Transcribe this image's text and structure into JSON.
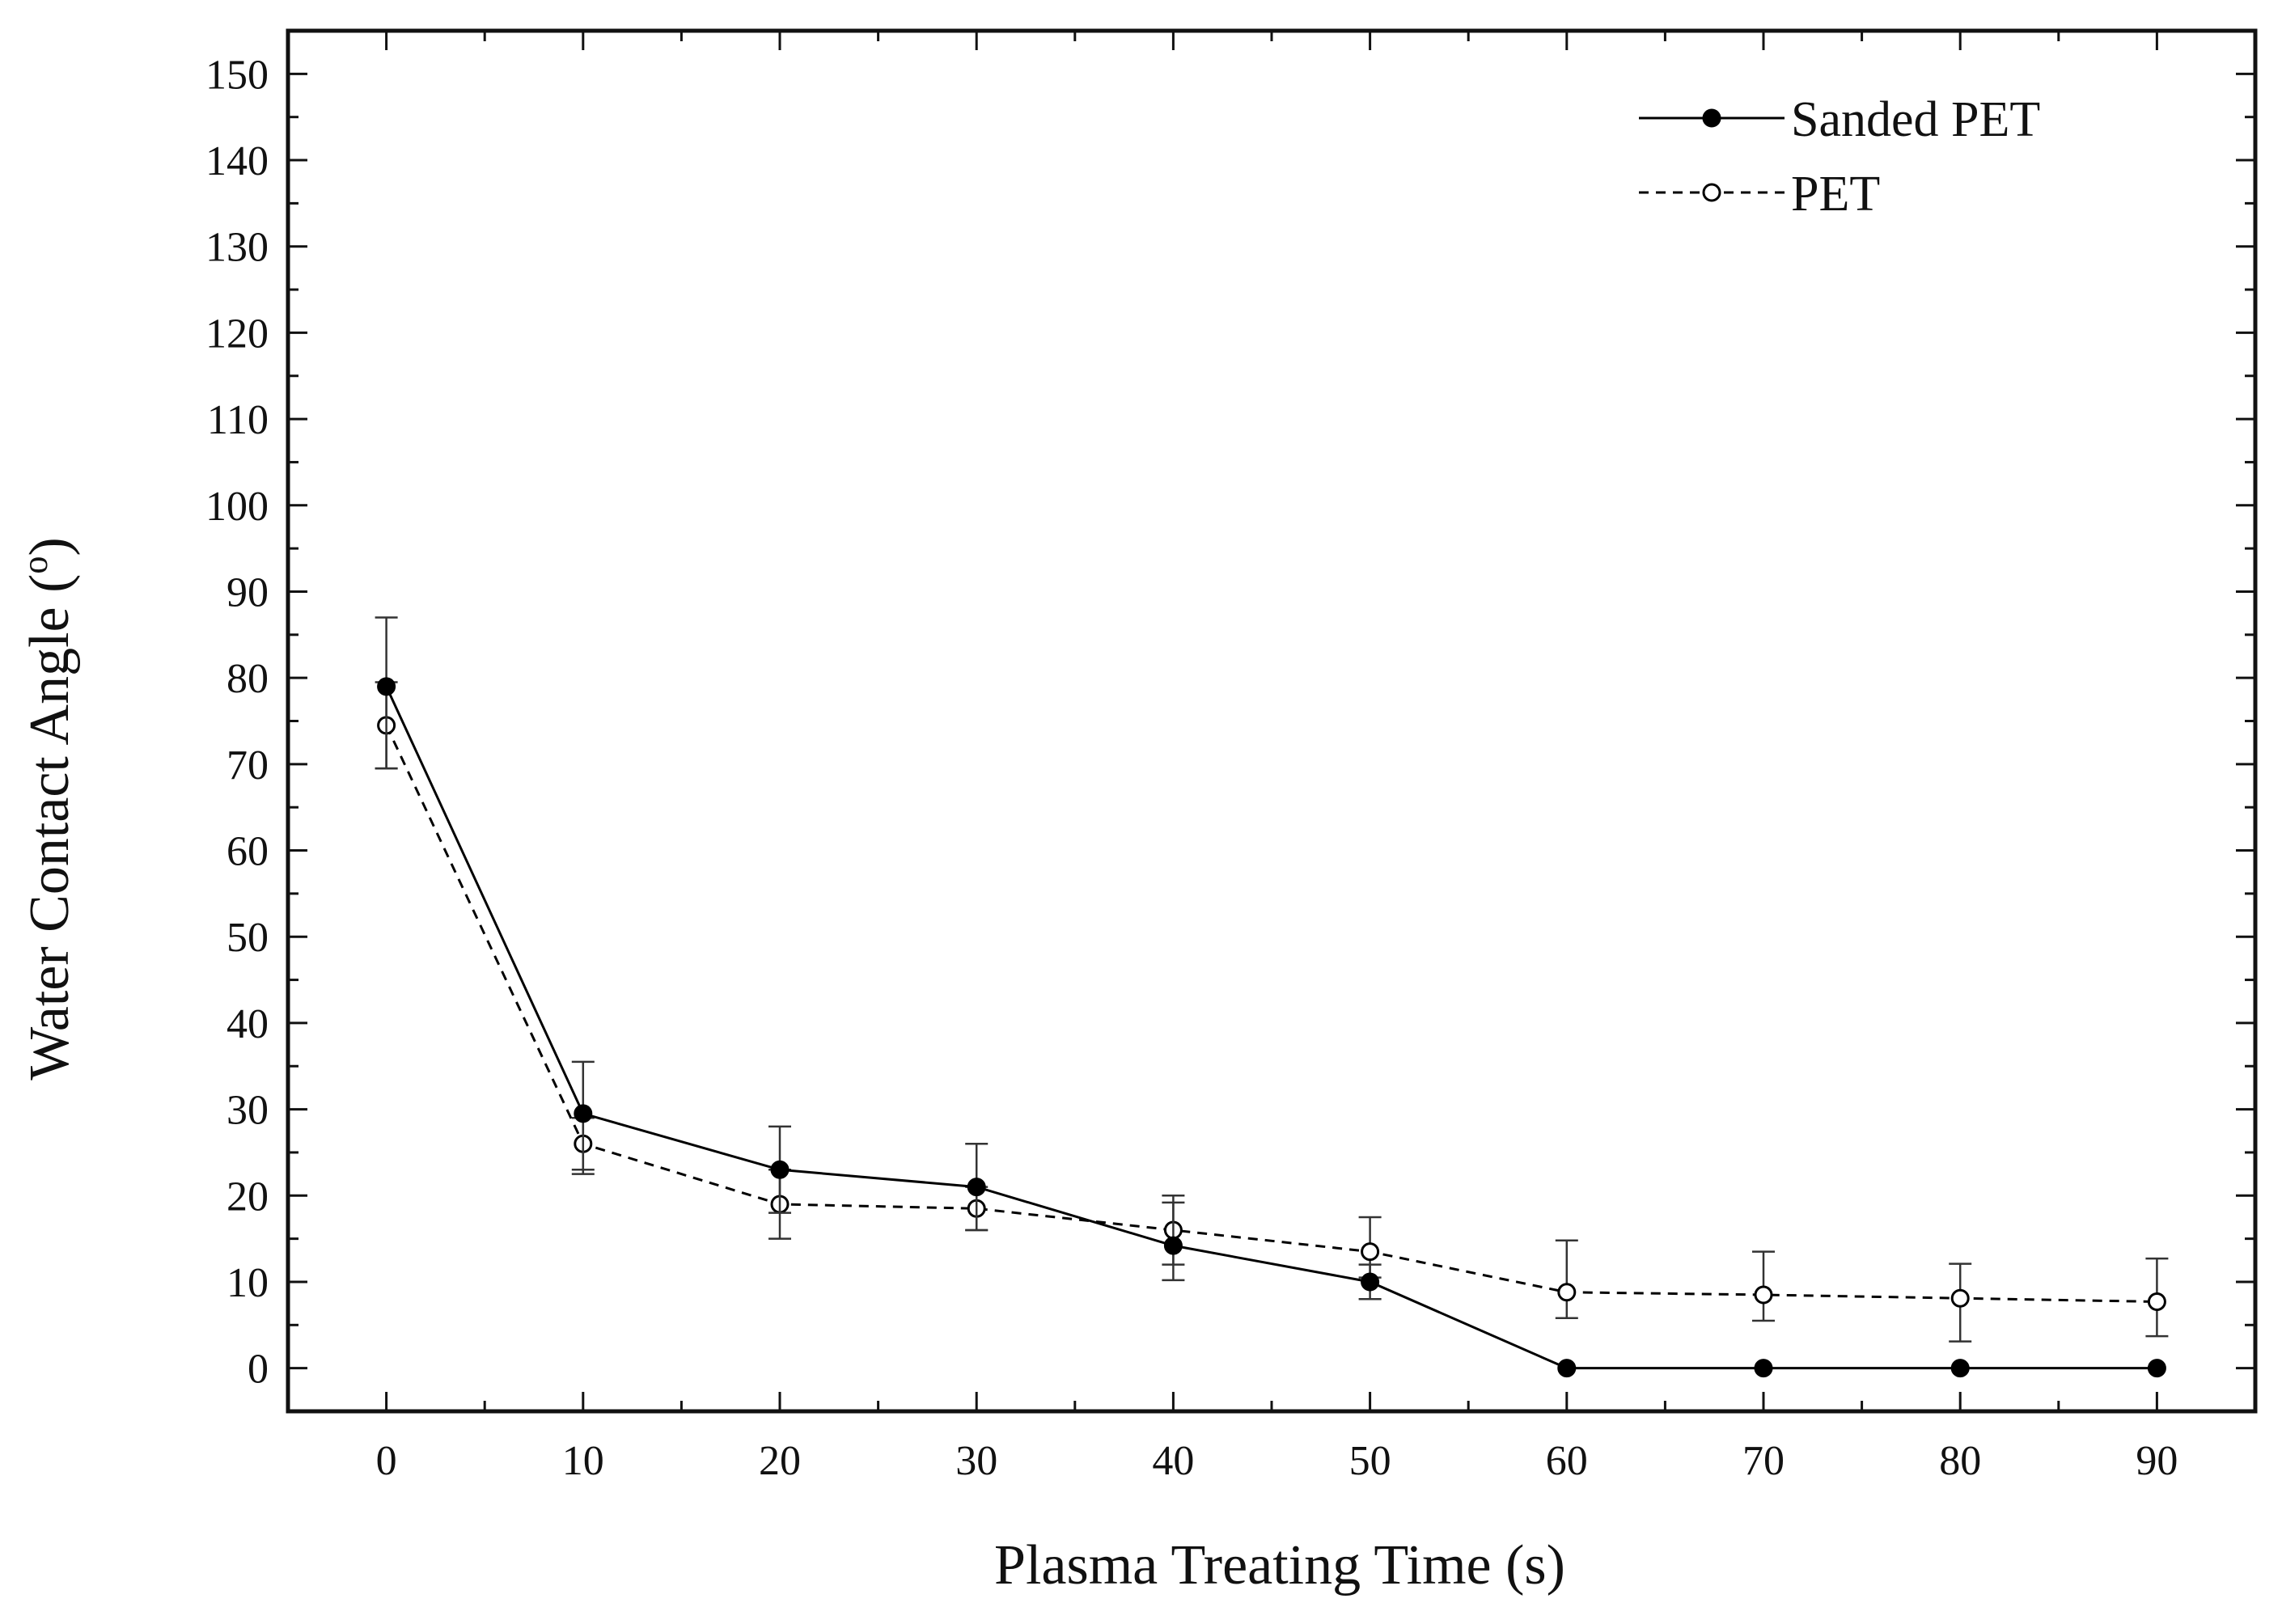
{
  "chart_data": {
    "type": "line",
    "title": "",
    "xlabel": "Plasma Treating Time (s)",
    "ylabel": "Water Contact Angle (°)",
    "ylabel_main": "Water Contact Angle (",
    "ylabel_sup": "o",
    "ylabel_close": ")",
    "xlim": [
      -5,
      95
    ],
    "ylim": [
      -5,
      155
    ],
    "x_ticks": [
      0,
      10,
      20,
      30,
      40,
      50,
      60,
      70,
      80,
      90
    ],
    "x_tick_labels": [
      "0",
      "10",
      "20",
      "30",
      "40",
      "50",
      "60",
      "70",
      "80",
      "90"
    ],
    "y_ticks": [
      0,
      10,
      20,
      30,
      40,
      50,
      60,
      70,
      80,
      90,
      100,
      110,
      120,
      130,
      140,
      150
    ],
    "y_tick_labels": [
      "0",
      "10",
      "20",
      "30",
      "40",
      "50",
      "60",
      "70",
      "80",
      "90",
      "100",
      "110",
      "120",
      "130",
      "140",
      "150"
    ],
    "grid": false,
    "legend_position": "top-right",
    "series": [
      {
        "name": "Sanded PET",
        "marker": "filled-circle",
        "line_style": "solid",
        "x": [
          0,
          10,
          20,
          30,
          40,
          50,
          60,
          70,
          80,
          90
        ],
        "values": [
          79,
          29.5,
          23,
          21,
          14.2,
          10,
          0,
          0,
          0,
          0
        ],
        "err_low": [
          9.5,
          7,
          5,
          5,
          4,
          2,
          0,
          0,
          0,
          0
        ],
        "err_high": [
          8,
          6,
          5,
          5,
          5,
          2,
          0,
          0,
          0,
          0
        ]
      },
      {
        "name": "PET",
        "marker": "open-circle",
        "line_style": "dashed",
        "x": [
          0,
          10,
          20,
          30,
          40,
          50,
          60,
          70,
          80,
          90
        ],
        "values": [
          74.5,
          26,
          19,
          18.5,
          16,
          13.5,
          8.8,
          8.5,
          8.1,
          7.7
        ],
        "err_low": [
          5,
          3,
          4,
          2.5,
          4,
          3,
          3,
          3,
          5,
          4
        ],
        "err_high": [
          5,
          3,
          4,
          2.5,
          4,
          4,
          6,
          5,
          4,
          5
        ]
      }
    ]
  }
}
